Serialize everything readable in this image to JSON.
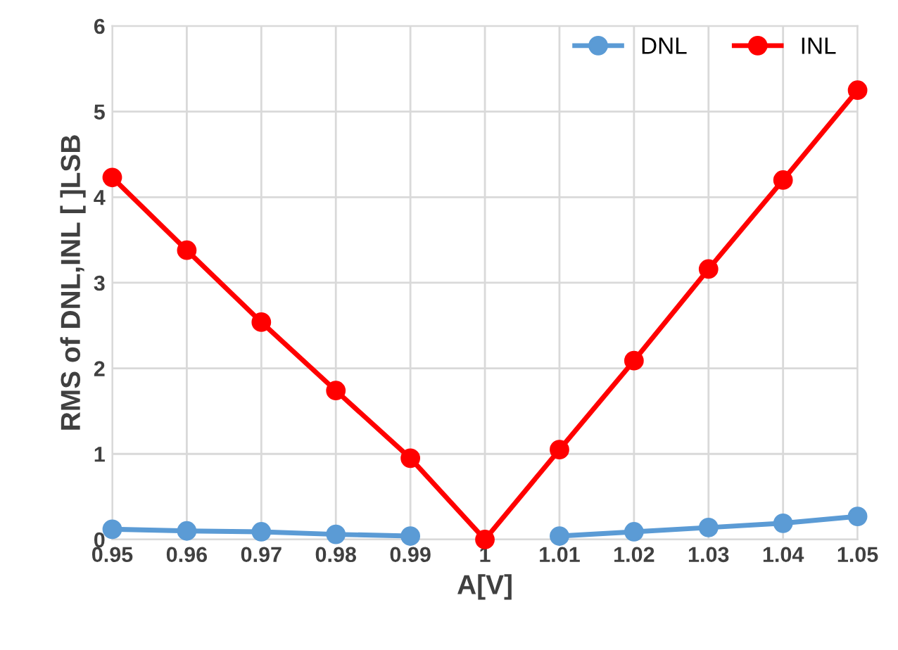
{
  "chart_data": {
    "type": "line",
    "xlabel": "A[V]",
    "ylabel": "RMS of DNL,INL [ ]LSB",
    "x": [
      0.95,
      0.96,
      0.97,
      0.98,
      0.99,
      1,
      1.01,
      1.02,
      1.03,
      1.04,
      1.05
    ],
    "series": [
      {
        "name": "DNL",
        "color": "#5b9bd5",
        "values": [
          0.12,
          0.1,
          0.09,
          0.06,
          0.04,
          null,
          0.04,
          0.09,
          0.14,
          0.19,
          0.27
        ]
      },
      {
        "name": "INL",
        "color": "#ff0000",
        "values": [
          4.23,
          3.38,
          2.54,
          1.74,
          0.95,
          0,
          1.05,
          2.09,
          3.16,
          4.2,
          5.25
        ]
      }
    ],
    "xlim": [
      0.95,
      1.05
    ],
    "xticks": [
      0.95,
      0.96,
      0.97,
      0.98,
      0.99,
      1,
      1.01,
      1.02,
      1.03,
      1.04,
      1.05
    ],
    "ylim": [
      0,
      6
    ],
    "yticks": [
      0,
      1,
      2,
      3,
      4,
      5,
      6
    ],
    "grid": true,
    "legend": "top right",
    "marker": "circle",
    "line_style": "solid"
  }
}
